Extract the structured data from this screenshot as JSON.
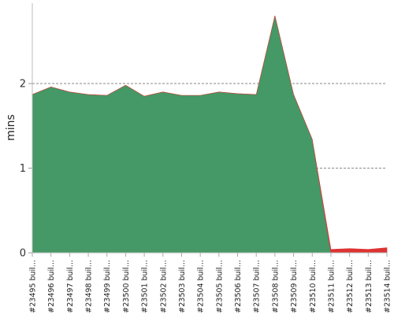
{
  "chart_data": {
    "type": "area",
    "title": "",
    "xlabel": "",
    "ylabel": "mins",
    "ylim": [
      0,
      2.95
    ],
    "yticks": [
      0,
      1,
      2
    ],
    "grid": true,
    "categories": [
      "#23495 buil...",
      "#23496 buil...",
      "#23497 buil...",
      "#23498 buil...",
      "#23499 buil...",
      "#23500 buil...",
      "#23501 buil...",
      "#23502 buil...",
      "#23503 buil...",
      "#23504 buil...",
      "#23505 buil...",
      "#23506 buil...",
      "#23507 buil...",
      "#23508 buil...",
      "#23509 buil...",
      "#23510 buil...",
      "#23511 buil...",
      "#23512 buil...",
      "#23513 buil...",
      "#23514 buil..."
    ],
    "series": [
      {
        "color": "#449966",
        "values": [
          1.87,
          1.96,
          1.9,
          1.87,
          1.86,
          1.98,
          1.85,
          1.9,
          1.86,
          1.86,
          1.9,
          1.88,
          1.87,
          2.8,
          1.87,
          1.34,
          0,
          0,
          0,
          0
        ]
      },
      {
        "color": "#dd3333",
        "values": [
          0,
          0,
          0,
          0,
          0,
          0,
          0,
          0,
          0,
          0,
          0,
          0,
          0,
          0,
          0,
          0,
          0.04,
          0.05,
          0.04,
          0.06
        ]
      }
    ]
  }
}
